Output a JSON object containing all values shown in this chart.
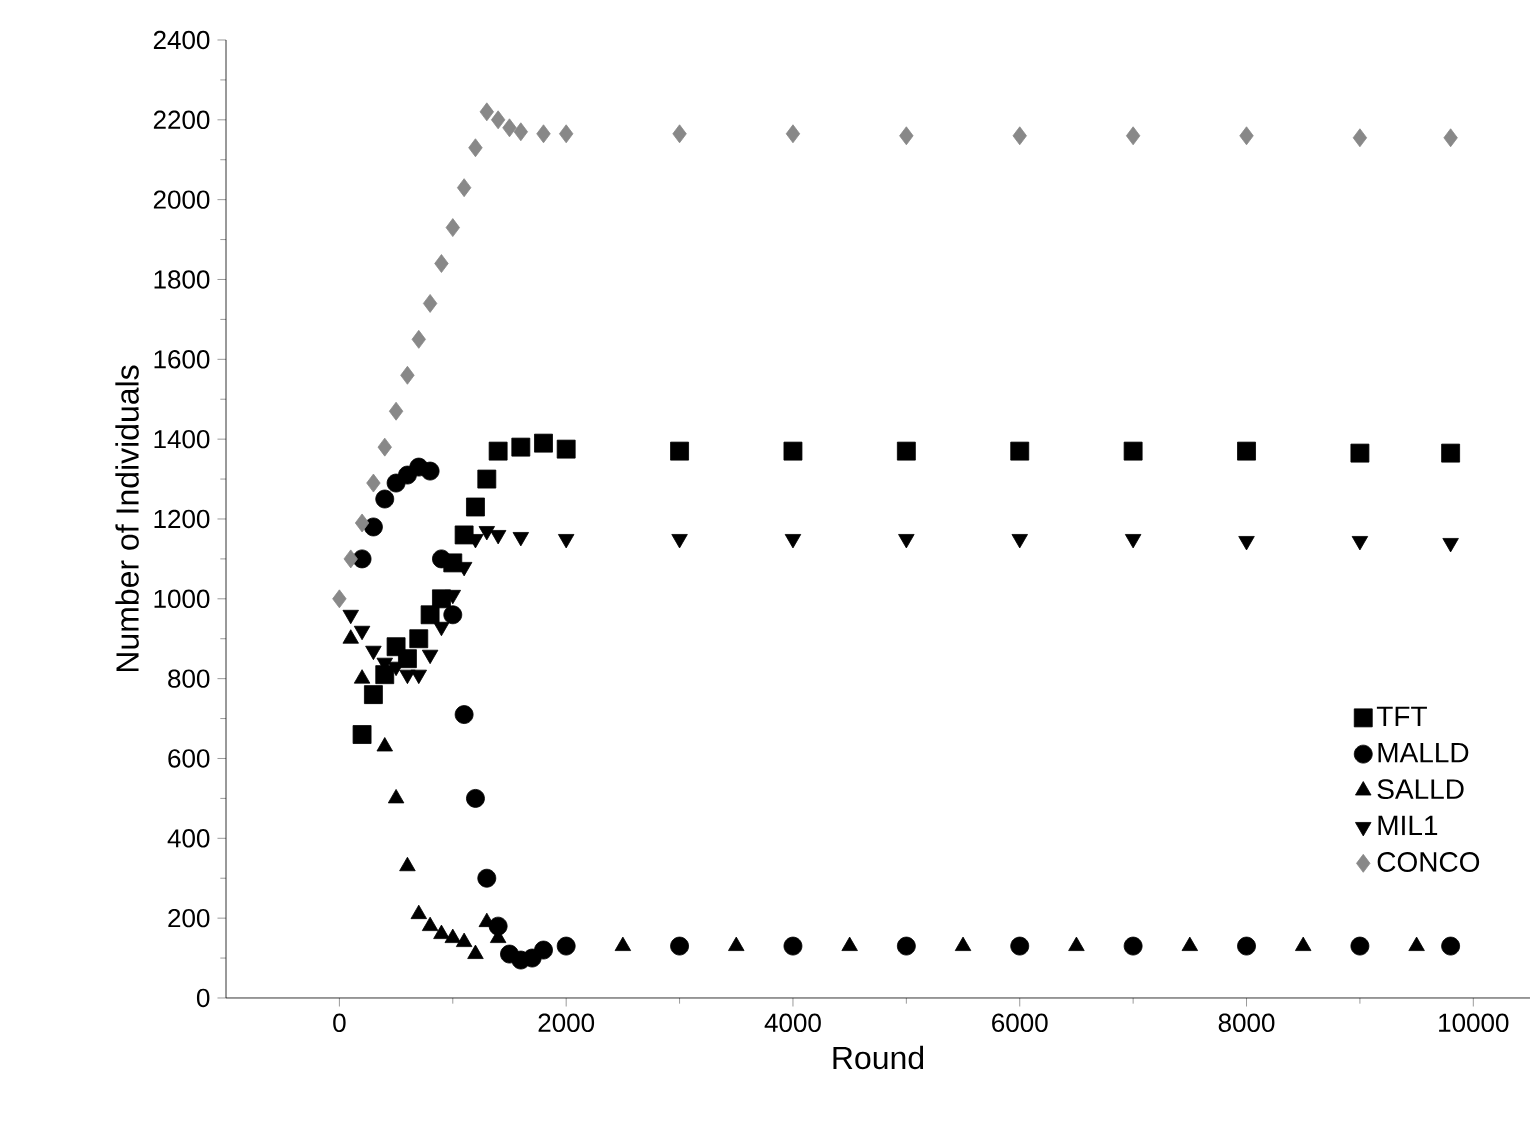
{
  "chart_data": {
    "type": "scatter",
    "xlabel": "Round",
    "ylabel": "Number of Individuals",
    "xlim": [
      -1000,
      10500
    ],
    "ylim": [
      0,
      2400
    ],
    "xticks": [
      0,
      2000,
      4000,
      6000,
      8000,
      10000
    ],
    "yticks": [
      0,
      200,
      400,
      600,
      800,
      1000,
      1200,
      1400,
      1600,
      1800,
      2000,
      2200,
      2400
    ],
    "grid": false,
    "legend": "bottom right",
    "series": [
      {
        "name": "TFT",
        "color": "#000000",
        "marker": "square",
        "x": [
          200,
          300,
          400,
          500,
          600,
          700,
          800,
          900,
          1000,
          1100,
          1200,
          1300,
          1400,
          1600,
          1800,
          2000,
          3000,
          4000,
          5000,
          6000,
          7000,
          8000,
          9000,
          9800
        ],
        "values": [
          660,
          760,
          810,
          880,
          850,
          900,
          960,
          1000,
          1090,
          1160,
          1230,
          1300,
          1370,
          1380,
          1390,
          1375,
          1370,
          1370,
          1370,
          1370,
          1370,
          1370,
          1365,
          1365
        ]
      },
      {
        "name": "MALLD",
        "color": "#000000",
        "marker": "circle",
        "x": [
          200,
          300,
          400,
          500,
          600,
          700,
          800,
          900,
          1000,
          1100,
          1200,
          1300,
          1400,
          1500,
          1600,
          1700,
          1800,
          2000,
          3000,
          4000,
          5000,
          6000,
          7000,
          8000,
          9000,
          9800
        ],
        "values": [
          1100,
          1180,
          1250,
          1290,
          1310,
          1330,
          1320,
          1100,
          960,
          710,
          500,
          300,
          180,
          110,
          95,
          100,
          120,
          130,
          130,
          130,
          130,
          130,
          130,
          130,
          130,
          130
        ]
      },
      {
        "name": "SALLD",
        "color": "#000000",
        "marker": "triangle",
        "x": [
          100,
          200,
          300,
          400,
          500,
          600,
          700,
          800,
          900,
          1000,
          1100,
          1200,
          1300,
          1400,
          2500,
          3500,
          4500,
          5500,
          6500,
          7500,
          8500,
          9500
        ],
        "values": [
          900,
          800,
          750,
          630,
          500,
          330,
          210,
          180,
          160,
          150,
          140,
          110,
          190,
          150,
          130,
          130,
          130,
          130,
          130,
          130,
          130,
          130
        ]
      },
      {
        "name": "MIL1",
        "color": "#000000",
        "marker": "triangle-down",
        "x": [
          100,
          200,
          300,
          400,
          500,
          600,
          700,
          800,
          900,
          1000,
          1100,
          1200,
          1300,
          1400,
          1600,
          2000,
          3000,
          4000,
          5000,
          6000,
          7000,
          8000,
          9000,
          9800
        ],
        "values": [
          960,
          920,
          870,
          840,
          830,
          810,
          810,
          860,
          930,
          1010,
          1080,
          1150,
          1170,
          1160,
          1155,
          1150,
          1150,
          1150,
          1150,
          1150,
          1150,
          1145,
          1145,
          1140
        ]
      },
      {
        "name": "CONCO",
        "color": "#888888",
        "marker": "diamond",
        "x": [
          0,
          100,
          200,
          300,
          400,
          500,
          600,
          700,
          800,
          900,
          1000,
          1100,
          1200,
          1300,
          1400,
          1500,
          1600,
          1800,
          2000,
          3000,
          4000,
          5000,
          6000,
          7000,
          8000,
          9000,
          9800
        ],
        "values": [
          1000,
          1100,
          1190,
          1290,
          1380,
          1470,
          1560,
          1650,
          1740,
          1840,
          1930,
          2030,
          2130,
          2220,
          2200,
          2180,
          2170,
          2165,
          2165,
          2165,
          2165,
          2160,
          2160,
          2160,
          2160,
          2155,
          2155
        ]
      }
    ]
  }
}
